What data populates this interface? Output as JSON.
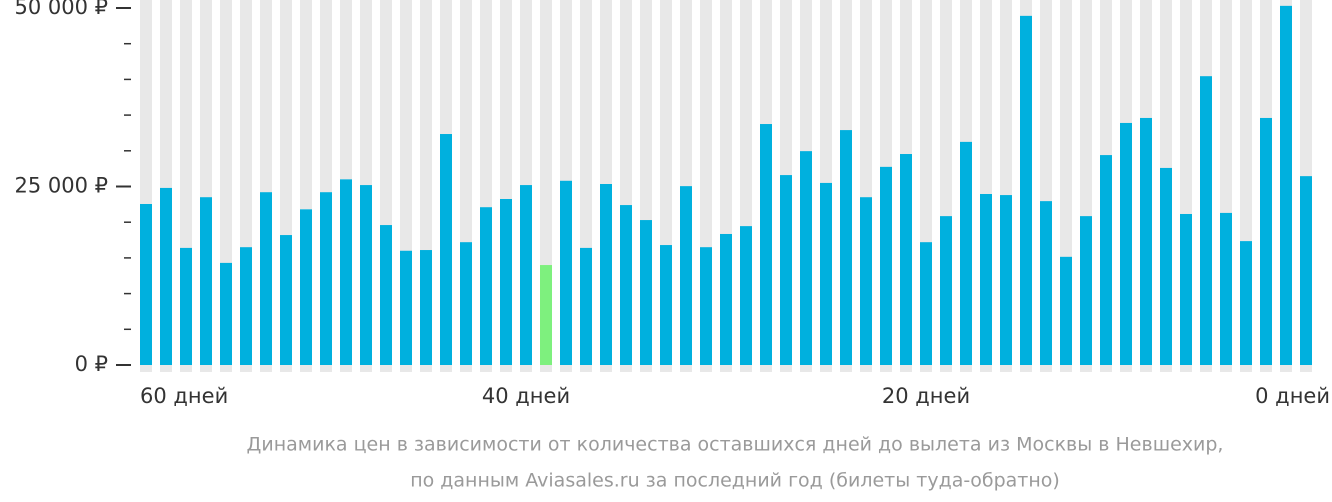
{
  "chart_data": {
    "type": "bar",
    "categories": [
      "60 дней",
      null,
      null,
      null,
      null,
      null,
      null,
      null,
      null,
      null,
      null,
      null,
      null,
      null,
      null,
      null,
      null,
      null,
      null,
      "40 дней",
      null,
      null,
      null,
      null,
      null,
      null,
      null,
      null,
      null,
      null,
      null,
      null,
      null,
      null,
      null,
      null,
      null,
      null,
      null,
      "20 дней",
      null,
      null,
      null,
      null,
      null,
      null,
      null,
      null,
      null,
      null,
      null,
      null,
      null,
      null,
      null,
      null,
      null,
      null,
      "0 дней"
    ],
    "values": [
      22550,
      24800,
      16400,
      23500,
      14300,
      16500,
      24200,
      18200,
      21800,
      24200,
      26000,
      25200,
      19600,
      16000,
      16100,
      32350,
      17200,
      22100,
      23250,
      25200,
      14000,
      25800,
      16400,
      25350,
      22400,
      20300,
      16800,
      25050,
      16500,
      18350,
      19450,
      33750,
      26600,
      29950,
      25500,
      32900,
      23500,
      27750,
      29550,
      17200,
      20850,
      31250,
      23950,
      23800,
      48900,
      22950,
      15150,
      20850,
      29400,
      33900,
      34600,
      27600,
      21150,
      40450,
      21300,
      17350,
      34600,
      50300,
      26450
    ],
    "colors": [
      "#00b0de",
      "#00b0de",
      "#00b0de",
      "#00b0de",
      "#00b0de",
      "#00b0de",
      "#00b0de",
      "#00b0de",
      "#00b0de",
      "#00b0de",
      "#00b0de",
      "#00b0de",
      "#00b0de",
      "#00b0de",
      "#00b0de",
      "#00b0de",
      "#00b0de",
      "#00b0de",
      "#00b0de",
      "#00b0de",
      "#7ef07e",
      "#00b0de",
      "#00b0de",
      "#00b0de",
      "#00b0de",
      "#00b0de",
      "#00b0de",
      "#00b0de",
      "#00b0de",
      "#00b0de",
      "#00b0de",
      "#00b0de",
      "#00b0de",
      "#00b0de",
      "#00b0de",
      "#00b0de",
      "#00b0de",
      "#00b0de",
      "#00b0de",
      "#00b0de",
      "#00b0de",
      "#00b0de",
      "#00b0de",
      "#00b0de",
      "#00b0de",
      "#00b0de",
      "#00b0de",
      "#00b0de",
      "#00b0de",
      "#00b0de",
      "#00b0de",
      "#00b0de",
      "#00b0de",
      "#00b0de",
      "#00b0de",
      "#00b0de",
      "#00b0de",
      "#00b0de",
      "#00b0de"
    ],
    "ylim": [
      0,
      50000
    ],
    "yticks": [
      {
        "value": 0,
        "label": "0 ₽"
      },
      {
        "value": 25000,
        "label": "25 000 ₽"
      },
      {
        "value": 50000,
        "label": "50 000 ₽"
      }
    ],
    "minor_yticks": [
      5000,
      10000,
      15000,
      20000,
      30000,
      35000,
      40000,
      45000
    ],
    "caption": [
      "Динамика цен в зависимости от количества оставшихся дней до вылета из Москвы в Невшехир,",
      "по данным Aviasales.ru за последний год (билеты туда-обратно)"
    ]
  }
}
